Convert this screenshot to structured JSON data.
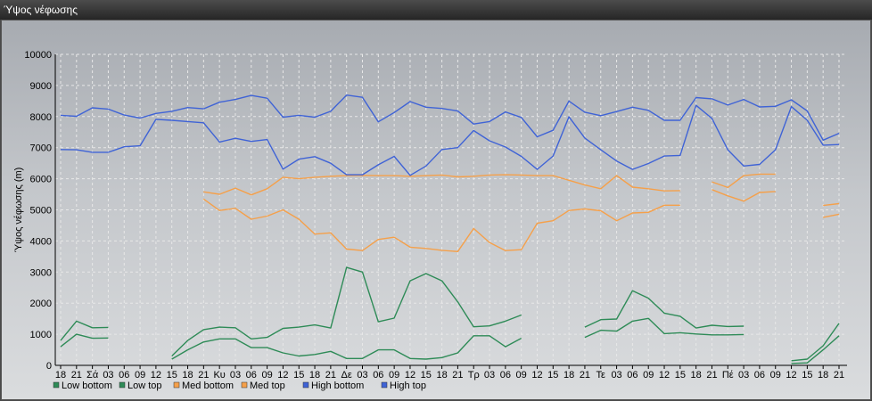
{
  "window": {
    "title": "Ύψος νέφωσης"
  },
  "chart_data": {
    "type": "line",
    "title": "",
    "xlabel": "",
    "ylabel": "Ύψος νέφωσης (m)",
    "ylim": [
      0,
      10000
    ],
    "yticks": [
      0,
      1000,
      2000,
      3000,
      4000,
      5000,
      6000,
      7000,
      8000,
      9000,
      10000
    ],
    "grid": true,
    "legend_position": "bottom-left",
    "x": [
      "18",
      "21",
      "Σά",
      "03",
      "06",
      "09",
      "12",
      "15",
      "18",
      "21",
      "Κυ",
      "03",
      "06",
      "09",
      "12",
      "15",
      "18",
      "21",
      "Δε",
      "03",
      "06",
      "09",
      "12",
      "15",
      "18",
      "21",
      "Τρ",
      "03",
      "06",
      "09",
      "12",
      "15",
      "18",
      "21",
      "Τε",
      "03",
      "06",
      "09",
      "12",
      "15",
      "18",
      "21",
      "Πέ",
      "03",
      "06",
      "09",
      "12",
      "15",
      "18",
      "21"
    ],
    "series": [
      {
        "name": "Low bottom",
        "color": "#2e8b57",
        "values": [
          600,
          1000,
          870,
          880,
          null,
          null,
          null,
          200,
          500,
          750,
          850,
          850,
          570,
          570,
          400,
          300,
          350,
          450,
          220,
          220,
          500,
          500,
          220,
          200,
          250,
          400,
          950,
          950,
          600,
          870,
          null,
          null,
          null,
          900,
          1130,
          1100,
          1420,
          1510,
          1020,
          1050,
          1010,
          980,
          980,
          990,
          null,
          null,
          60,
          80,
          500,
          950
        ]
      },
      {
        "name": "Low top",
        "color": "#2e8b57",
        "values": [
          800,
          1420,
          1210,
          1220,
          null,
          null,
          null,
          300,
          800,
          1150,
          1230,
          1210,
          850,
          900,
          1190,
          1230,
          1300,
          1200,
          3150,
          3000,
          1400,
          1520,
          2720,
          2950,
          2720,
          2040,
          1240,
          1270,
          1420,
          1620,
          null,
          null,
          null,
          1230,
          1470,
          1490,
          2400,
          2160,
          1680,
          1580,
          1200,
          1290,
          1250,
          1260,
          null,
          null,
          150,
          200,
          630,
          1350
        ]
      },
      {
        "name": "Med bottom",
        "color": "#f5a04a",
        "values": [
          null,
          null,
          null,
          null,
          null,
          null,
          null,
          null,
          null,
          5350,
          4980,
          5050,
          4700,
          4800,
          5000,
          4700,
          4220,
          4260,
          3740,
          3690,
          4050,
          4120,
          3800,
          3760,
          3700,
          3660,
          4400,
          3950,
          3690,
          3720,
          4570,
          4650,
          4980,
          5030,
          4970,
          4650,
          4900,
          4920,
          5150,
          5150,
          null,
          5650,
          5450,
          5280,
          5560,
          5590,
          null,
          null,
          4760,
          4860
        ]
      },
      {
        "name": "Med top",
        "color": "#f5a04a",
        "values": [
          null,
          null,
          null,
          null,
          null,
          null,
          null,
          null,
          null,
          5580,
          5500,
          5700,
          5480,
          5680,
          6050,
          6000,
          6050,
          6080,
          6100,
          6110,
          6100,
          6100,
          6080,
          6100,
          6120,
          6060,
          6080,
          6120,
          6130,
          6120,
          6100,
          6100,
          5950,
          5800,
          5680,
          6100,
          5730,
          5680,
          5610,
          5620,
          null,
          5900,
          5720,
          6100,
          6150,
          6150,
          null,
          null,
          5140,
          5200
        ]
      },
      {
        "name": "High bottom",
        "color": "#3f63d6",
        "values": [
          6940,
          6930,
          6850,
          6850,
          7030,
          7060,
          7910,
          7880,
          7840,
          7800,
          7180,
          7300,
          7200,
          7260,
          6310,
          6630,
          6710,
          6500,
          6130,
          6130,
          6450,
          6720,
          6110,
          6410,
          6940,
          7000,
          7550,
          7220,
          7020,
          6720,
          6300,
          6730,
          7990,
          7310,
          6930,
          6570,
          6300,
          6490,
          6730,
          6750,
          8360,
          7940,
          6930,
          6410,
          6460,
          6930,
          8320,
          7880,
          7080,
          7100
        ]
      },
      {
        "name": "High top",
        "color": "#3f63d6",
        "values": [
          8040,
          8010,
          8280,
          8240,
          8050,
          7950,
          8100,
          8170,
          8290,
          8250,
          8460,
          8550,
          8680,
          8590,
          7980,
          8040,
          7980,
          8170,
          8690,
          8620,
          7830,
          8130,
          8480,
          8300,
          8260,
          8180,
          7760,
          7840,
          8150,
          7970,
          7350,
          7560,
          8500,
          8140,
          8030,
          8160,
          8300,
          8200,
          7880,
          7880,
          8610,
          8570,
          8370,
          8550,
          8310,
          8330,
          8540,
          8180,
          7240,
          7460
        ]
      }
    ]
  }
}
